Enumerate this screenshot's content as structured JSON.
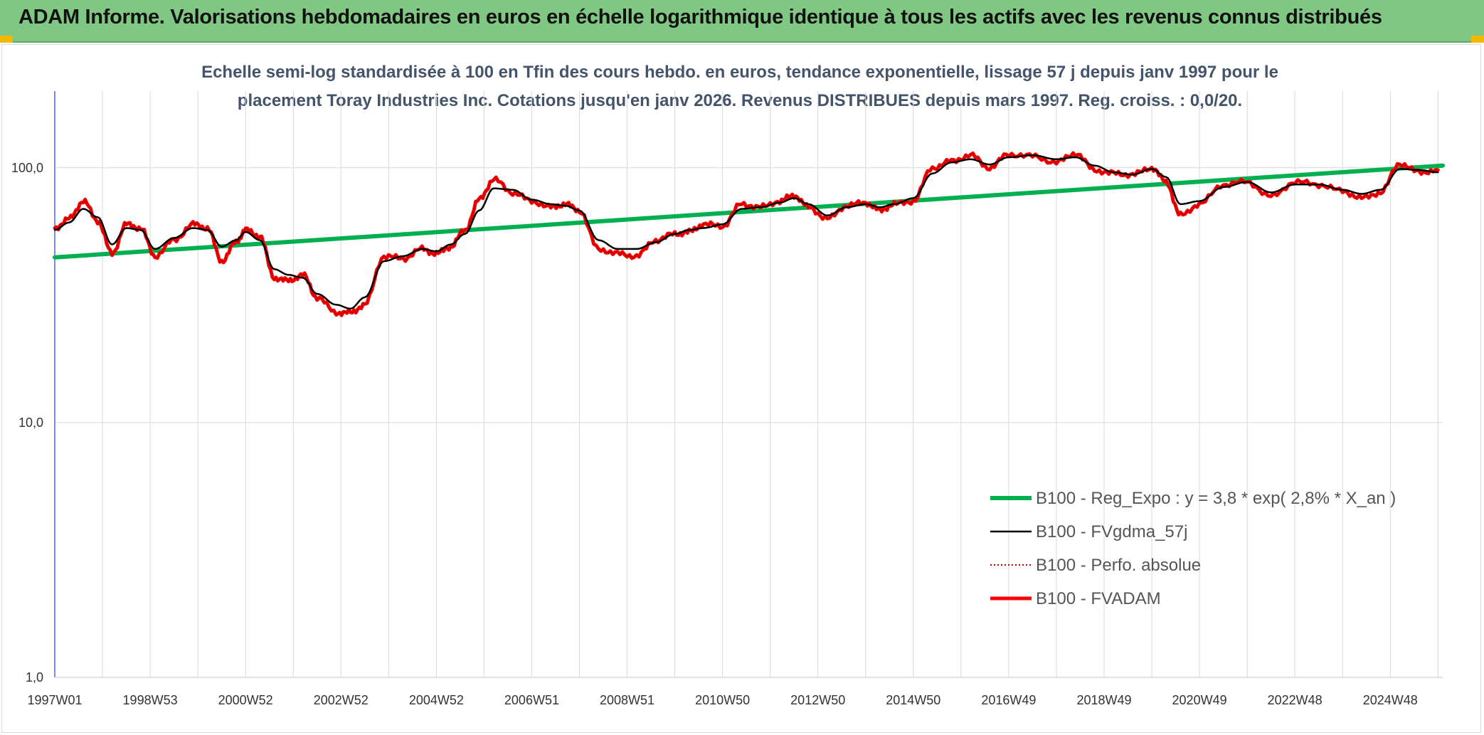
{
  "banner": {
    "title": "ADAM Informe. Valorisations hebdomadaires en euros en échelle logarithmique identique à tous les actifs avec les revenus connus distribués"
  },
  "colors": {
    "banner_bg": "#81c784",
    "trend": "#00b050",
    "fvgdma": "#000000",
    "perfo": "#c00000",
    "fvadam": "#ff0000",
    "accent_corner": "#f5b800"
  },
  "chart_data": {
    "type": "line",
    "title_line1": "Echelle semi-log standardisée à 100 en Tfin des cours hebdo. en euros, tendance exponentielle, lissage 57 j depuis janv 1997 pour le",
    "title_line2": "placement Toray Industries Inc. Cotations jusqu'en janv 2026. Revenus DISTRIBUES depuis mars 1997. Reg. croiss. : 0,0/20.",
    "y_scale": "log",
    "ylim": [
      1,
      200
    ],
    "y_ticks": [
      {
        "value": 1,
        "label": "1,0"
      },
      {
        "value": 10,
        "label": "10,0"
      },
      {
        "value": 100,
        "label": "100,0"
      }
    ],
    "xlim": [
      1997.0,
      2026.1
    ],
    "x_ticks": [
      {
        "value": 1997.0,
        "label": "1997W01"
      },
      {
        "value": 1999.0,
        "label": "1998W53"
      },
      {
        "value": 2001.0,
        "label": "2000W52"
      },
      {
        "value": 2003.0,
        "label": "2002W52"
      },
      {
        "value": 2005.0,
        "label": "2004W52"
      },
      {
        "value": 2007.0,
        "label": "2006W51"
      },
      {
        "value": 2009.0,
        "label": "2008W51"
      },
      {
        "value": 2011.0,
        "label": "2010W50"
      },
      {
        "value": 2013.0,
        "label": "2012W50"
      },
      {
        "value": 2015.0,
        "label": "2014W50"
      },
      {
        "value": 2017.0,
        "label": "2016W49"
      },
      {
        "value": 2019.0,
        "label": "2018W49"
      },
      {
        "value": 2021.0,
        "label": "2020W49"
      },
      {
        "value": 2023.0,
        "label": "2022W48"
      },
      {
        "value": 2025.0,
        "label": "2024W48"
      }
    ],
    "grid": {
      "vertical": true,
      "horizontal": true
    },
    "legend_position": "bottom-right",
    "series": [
      {
        "name": "B100 - Reg_Expo : y = 3,8 * exp( 2,8% *  X_an )",
        "style": "trend",
        "x": [
          1997.0,
          2026.1
        ],
        "y": [
          44.5,
          102.0
        ]
      },
      {
        "name": "B100 - FVgdma_57j",
        "style": "smooth",
        "x": [
          1997.0,
          1997.3,
          1997.6,
          1997.9,
          1998.2,
          1998.5,
          1998.8,
          1999.1,
          1999.5,
          1999.9,
          2000.2,
          2000.5,
          2000.8,
          2001.0,
          2001.3,
          2001.6,
          2001.9,
          2002.2,
          2002.5,
          2002.9,
          2003.2,
          2003.5,
          2003.9,
          2004.3,
          2004.7,
          2005.0,
          2005.3,
          2005.6,
          2005.9,
          2006.2,
          2006.6,
          2007.0,
          2007.4,
          2007.7,
          2008.0,
          2008.4,
          2008.8,
          2009.2,
          2009.6,
          2010.0,
          2010.3,
          2010.6,
          2011.0,
          2011.4,
          2011.8,
          2012.2,
          2012.5,
          2012.8,
          2013.2,
          2013.6,
          2014.0,
          2014.3,
          2014.6,
          2015.0,
          2015.4,
          2015.8,
          2016.2,
          2016.6,
          2017.0,
          2017.5,
          2018.0,
          2018.4,
          2018.8,
          2019.2,
          2019.6,
          2020.0,
          2020.3,
          2020.6,
          2021.0,
          2021.5,
          2022.0,
          2022.5,
          2023.0,
          2023.5,
          2024.0,
          2024.4,
          2024.8,
          2025.2,
          2025.6,
          2026.0
        ],
        "y": [
          57,
          61,
          69,
          64,
          50,
          58,
          57,
          48,
          53,
          58,
          57,
          49,
          52,
          56,
          52,
          40,
          38,
          37,
          32,
          29,
          28,
          31,
          43,
          45,
          48,
          47,
          50,
          55,
          68,
          83,
          82,
          75,
          72,
          71,
          68,
          52,
          48,
          48,
          51,
          55,
          57,
          58,
          60,
          69,
          70,
          73,
          76,
          72,
          65,
          70,
          72,
          70,
          72,
          76,
          95,
          105,
          108,
          103,
          110,
          112,
          108,
          110,
          102,
          96,
          94,
          99,
          92,
          72,
          74,
          84,
          88,
          80,
          86,
          86,
          82,
          79,
          82,
          99,
          98,
          96
        ]
      },
      {
        "name": "B100 - Perfo. absolue",
        "style": "dotted",
        "x": [
          1997.0,
          1997.3,
          1997.6,
          1997.9,
          1998.2,
          1998.5,
          1998.8,
          1999.1,
          1999.5,
          1999.9,
          2000.2,
          2000.5,
          2000.8,
          2001.0,
          2001.3,
          2001.6,
          2001.9,
          2002.2,
          2002.5,
          2002.9,
          2003.2,
          2003.5,
          2003.9,
          2004.3,
          2004.7,
          2005.0,
          2005.3,
          2005.6,
          2005.9,
          2006.2,
          2006.6,
          2007.0,
          2007.4,
          2007.7,
          2008.0,
          2008.4,
          2008.8,
          2009.2,
          2009.6,
          2010.0,
          2010.3,
          2010.6,
          2011.0,
          2011.4,
          2011.8,
          2012.2,
          2012.5,
          2012.8,
          2013.2,
          2013.6,
          2014.0,
          2014.3,
          2014.6,
          2015.0,
          2015.4,
          2015.8,
          2016.2,
          2016.6,
          2017.0,
          2017.5,
          2018.0,
          2018.4,
          2018.8,
          2019.2,
          2019.6,
          2020.0,
          2020.3,
          2020.6,
          2021.0,
          2021.5,
          2022.0,
          2022.5,
          2023.0,
          2023.5,
          2024.0,
          2024.4,
          2024.8,
          2025.2,
          2025.6,
          2026.0
        ],
        "y": [
          58,
          63,
          74,
          62,
          46,
          60,
          58,
          45,
          52,
          60,
          58,
          43,
          51,
          57,
          54,
          37,
          36,
          38,
          31,
          27,
          27,
          29,
          45,
          44,
          48,
          46,
          49,
          57,
          75,
          90,
          80,
          74,
          70,
          72,
          68,
          48,
          46,
          45,
          52,
          55,
          56,
          60,
          59,
          72,
          70,
          74,
          78,
          70,
          63,
          71,
          73,
          68,
          72,
          74,
          100,
          106,
          112,
          100,
          113,
          111,
          105,
          114,
          98,
          95,
          94,
          100,
          88,
          65,
          72,
          86,
          88,
          77,
          88,
          86,
          81,
          76,
          80,
          104,
          96,
          98
        ]
      },
      {
        "name": "B100 - FVADAM",
        "style": "bold",
        "x": [
          1997.0,
          1997.3,
          1997.6,
          1997.9,
          1998.2,
          1998.5,
          1998.8,
          1999.1,
          1999.5,
          1999.9,
          2000.2,
          2000.5,
          2000.8,
          2001.0,
          2001.3,
          2001.6,
          2001.9,
          2002.2,
          2002.5,
          2002.9,
          2003.2,
          2003.5,
          2003.9,
          2004.3,
          2004.7,
          2005.0,
          2005.3,
          2005.6,
          2005.9,
          2006.2,
          2006.6,
          2007.0,
          2007.4,
          2007.7,
          2008.0,
          2008.4,
          2008.8,
          2009.2,
          2009.6,
          2010.0,
          2010.3,
          2010.6,
          2011.0,
          2011.4,
          2011.8,
          2012.2,
          2012.5,
          2012.8,
          2013.2,
          2013.6,
          2014.0,
          2014.3,
          2014.6,
          2015.0,
          2015.4,
          2015.8,
          2016.2,
          2016.6,
          2017.0,
          2017.5,
          2018.0,
          2018.4,
          2018.8,
          2019.2,
          2019.6,
          2020.0,
          2020.3,
          2020.6,
          2021.0,
          2021.5,
          2022.0,
          2022.5,
          2023.0,
          2023.5,
          2024.0,
          2024.4,
          2024.8,
          2025.2,
          2025.6,
          2026.0
        ],
        "y": [
          58,
          63,
          74,
          62,
          46,
          60,
          58,
          45,
          52,
          60,
          58,
          43,
          51,
          57,
          54,
          37,
          36,
          38,
          31,
          27,
          27,
          29,
          45,
          44,
          48,
          46,
          49,
          57,
          75,
          90,
          80,
          74,
          70,
          72,
          68,
          48,
          46,
          45,
          52,
          55,
          56,
          60,
          59,
          72,
          70,
          74,
          78,
          70,
          63,
          71,
          73,
          68,
          72,
          74,
          100,
          106,
          112,
          100,
          113,
          111,
          105,
          114,
          98,
          95,
          94,
          100,
          88,
          65,
          72,
          86,
          88,
          77,
          88,
          86,
          81,
          76,
          80,
          104,
          96,
          98
        ]
      }
    ]
  }
}
